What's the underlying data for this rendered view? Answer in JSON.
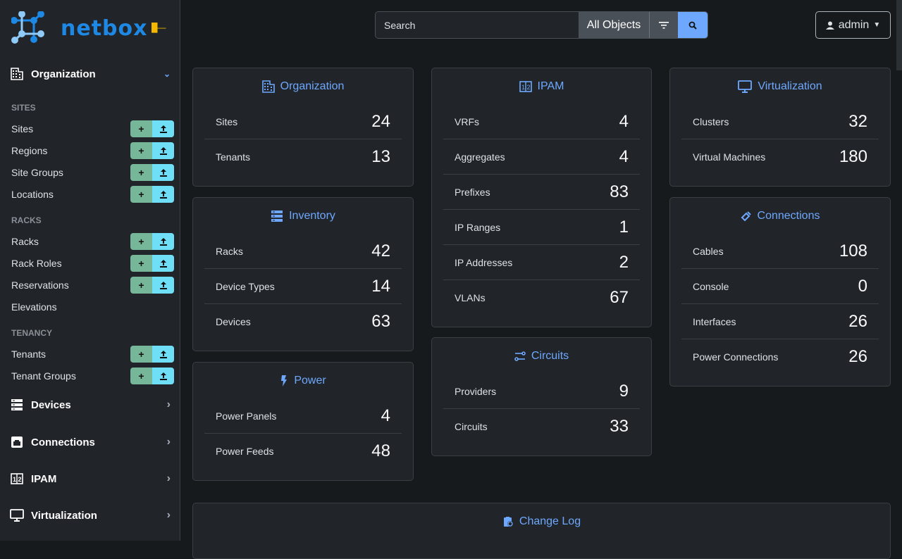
{
  "brand": {
    "name": "netbox"
  },
  "sidebar": {
    "organization": {
      "label": "Organization",
      "icon": "building-icon"
    },
    "sections": [
      {
        "title": "SITES",
        "items": [
          {
            "label": "Sites",
            "buttons": true
          },
          {
            "label": "Regions",
            "buttons": true
          },
          {
            "label": "Site Groups",
            "buttons": true
          },
          {
            "label": "Locations",
            "buttons": true
          }
        ]
      },
      {
        "title": "RACKS",
        "items": [
          {
            "label": "Racks",
            "buttons": true
          },
          {
            "label": "Rack Roles",
            "buttons": true
          },
          {
            "label": "Reservations",
            "buttons": true
          },
          {
            "label": "Elevations",
            "buttons": false
          }
        ]
      },
      {
        "title": "TENANCY",
        "items": [
          {
            "label": "Tenants",
            "buttons": true
          },
          {
            "label": "Tenant Groups",
            "buttons": true
          }
        ]
      }
    ],
    "menus": [
      {
        "label": "Devices",
        "icon": "server-icon"
      },
      {
        "label": "Connections",
        "icon": "ethernet-icon"
      },
      {
        "label": "IPAM",
        "icon": "counter-icon"
      },
      {
        "label": "Virtualization",
        "icon": "monitor-icon"
      }
    ]
  },
  "search": {
    "placeholder": "Search",
    "scope": "All Objects"
  },
  "user": {
    "name": "admin"
  },
  "cards": [
    {
      "title": "Organization",
      "icon": "building-icon",
      "rows": [
        [
          "Sites",
          "24"
        ],
        [
          "Tenants",
          "13"
        ]
      ]
    },
    {
      "title": "Inventory",
      "icon": "server-icon",
      "rows": [
        [
          "Racks",
          "42"
        ],
        [
          "Device Types",
          "14"
        ],
        [
          "Devices",
          "63"
        ]
      ]
    },
    {
      "title": "Power",
      "icon": "lightning-icon",
      "rows": [
        [
          "Power Panels",
          "4"
        ],
        [
          "Power Feeds",
          "48"
        ]
      ]
    },
    {
      "title": "IPAM",
      "icon": "counter-icon",
      "rows": [
        [
          "VRFs",
          "4"
        ],
        [
          "Aggregates",
          "4"
        ],
        [
          "Prefixes",
          "83"
        ],
        [
          "IP Ranges",
          "1"
        ],
        [
          "IP Addresses",
          "2"
        ],
        [
          "VLANs",
          "67"
        ]
      ]
    },
    {
      "title": "Circuits",
      "icon": "transit-icon",
      "rows": [
        [
          "Providers",
          "9"
        ],
        [
          "Circuits",
          "33"
        ]
      ]
    },
    {
      "title": "Virtualization",
      "icon": "monitor-icon",
      "rows": [
        [
          "Clusters",
          "32"
        ],
        [
          "Virtual Machines",
          "180"
        ]
      ]
    },
    {
      "title": "Connections",
      "icon": "cable-icon",
      "rows": [
        [
          "Cables",
          "108"
        ],
        [
          "Console",
          "0"
        ],
        [
          "Interfaces",
          "26"
        ],
        [
          "Power Connections",
          "26"
        ]
      ]
    },
    {
      "title": "Change Log",
      "icon": "clipboard-clock-icon",
      "rows": []
    }
  ],
  "colors": {
    "accent": "#6ea8fe",
    "add": "#75b798",
    "import": "#6edff6",
    "brand": "#1e88e5"
  }
}
